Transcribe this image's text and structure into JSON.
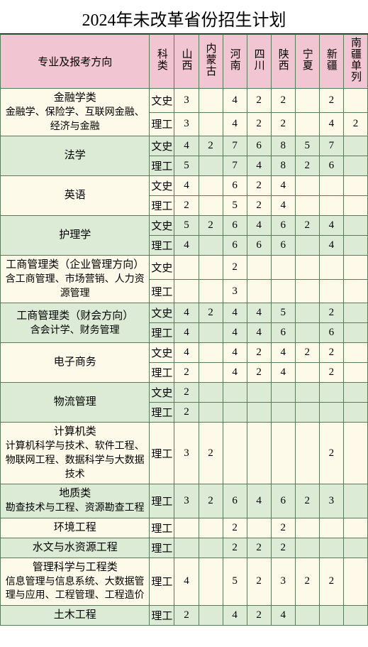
{
  "title": "2024年未改革省份招生计划",
  "colors": {
    "header_bg": "#f2c5d3",
    "row_warm": "#fdfae9",
    "row_green": "#dcebd6",
    "border": "#5a7a5a"
  },
  "headers": {
    "major": "专业及报考方向",
    "type": "科类",
    "provinces": [
      "山西",
      "内蒙古",
      "河南",
      "四川",
      "陕西",
      "宁夏",
      "新疆",
      "南疆单列"
    ]
  },
  "type_labels": {
    "ws": "文史",
    "lg": "理工"
  },
  "majors": [
    {
      "main": "金融学类",
      "sub": "金融学、保险学、互联网金融、经济与金融",
      "bg": "w",
      "rows": [
        {
          "t": "ws",
          "v": [
            "3",
            "",
            "4",
            "2",
            "2",
            "",
            "2",
            ""
          ]
        },
        {
          "t": "lg",
          "v": [
            "3",
            "",
            "4",
            "2",
            "2",
            "",
            "4",
            "2"
          ]
        }
      ]
    },
    {
      "main": "法学",
      "sub": "",
      "bg": "g",
      "rows": [
        {
          "t": "ws",
          "v": [
            "4",
            "2",
            "7",
            "6",
            "8",
            "5",
            "7",
            ""
          ]
        },
        {
          "t": "lg",
          "v": [
            "5",
            "",
            "7",
            "4",
            "8",
            "2",
            "6",
            ""
          ]
        }
      ]
    },
    {
      "main": "英语",
      "sub": "",
      "bg": "w",
      "rows": [
        {
          "t": "ws",
          "v": [
            "4",
            "",
            "6",
            "2",
            "4",
            "",
            "",
            ""
          ]
        },
        {
          "t": "lg",
          "v": [
            "2",
            "",
            "5",
            "2",
            "4",
            "",
            "",
            ""
          ]
        }
      ]
    },
    {
      "main": "护理学",
      "sub": "",
      "bg": "g",
      "rows": [
        {
          "t": "ws",
          "v": [
            "5",
            "2",
            "6",
            "4",
            "6",
            "2",
            "4",
            ""
          ]
        },
        {
          "t": "lg",
          "v": [
            "4",
            "",
            "6",
            "6",
            "6",
            "",
            "4",
            ""
          ]
        }
      ]
    },
    {
      "main": "工商管理类（企业管理方向）",
      "sub": "含工商管理、市场营销、人力资源管理",
      "bg": "w",
      "rows": [
        {
          "t": "ws",
          "v": [
            "",
            "",
            "2",
            "",
            "",
            "",
            "",
            ""
          ]
        },
        {
          "t": "lg",
          "v": [
            "",
            "",
            "3",
            "",
            "",
            "",
            "",
            ""
          ]
        }
      ]
    },
    {
      "main": "工商管理类（财会方向）",
      "sub": "含会计学、财务管理",
      "bg": "g",
      "rows": [
        {
          "t": "ws",
          "v": [
            "4",
            "2",
            "4",
            "4",
            "5",
            "",
            "2",
            ""
          ]
        },
        {
          "t": "lg",
          "v": [
            "4",
            "",
            "4",
            "4",
            "6",
            "",
            "6",
            ""
          ]
        }
      ]
    },
    {
      "main": "电子商务",
      "sub": "",
      "bg": "w",
      "rows": [
        {
          "t": "ws",
          "v": [
            "4",
            "",
            "4",
            "2",
            "4",
            "2",
            "2",
            ""
          ]
        },
        {
          "t": "lg",
          "v": [
            "2",
            "",
            "4",
            "2",
            "4",
            "",
            "2",
            ""
          ]
        }
      ]
    },
    {
      "main": "物流管理",
      "sub": "",
      "bg": "g",
      "rows": [
        {
          "t": "ws",
          "v": [
            "2",
            "",
            "",
            "",
            "",
            "",
            "",
            ""
          ]
        },
        {
          "t": "lg",
          "v": [
            "2",
            "",
            "",
            "",
            "",
            "",
            "",
            ""
          ]
        }
      ]
    },
    {
      "main": "计算机类",
      "sub": "计算机科学与技术、软件工程、物联网工程、数据科学与大数据技术",
      "bg": "w",
      "rows": [
        {
          "t": "lg",
          "v": [
            "3",
            "2",
            "",
            "",
            "",
            "",
            "2",
            ""
          ]
        }
      ]
    },
    {
      "main": "地质类",
      "sub": "勘查技术与工程、资源勘查工程",
      "bg": "g",
      "rows": [
        {
          "t": "lg",
          "v": [
            "3",
            "2",
            "6",
            "4",
            "6",
            "2",
            "3",
            ""
          ]
        }
      ]
    },
    {
      "main": "环境工程",
      "sub": "",
      "bg": "w",
      "rows": [
        {
          "t": "lg",
          "v": [
            "",
            "",
            "2",
            "",
            "2",
            "",
            "",
            ""
          ]
        }
      ]
    },
    {
      "main": "水文与水资源工程",
      "sub": "",
      "bg": "g",
      "rows": [
        {
          "t": "lg",
          "v": [
            "",
            "",
            "2",
            "2",
            "2",
            "",
            "",
            ""
          ]
        }
      ]
    },
    {
      "main": "管理科学与工程类",
      "sub": "信息管理与信息系统、大数据管理与应用、工程管理、工程造价",
      "bg": "w",
      "rows": [
        {
          "t": "lg",
          "v": [
            "4",
            "",
            "5",
            "2",
            "3",
            "2",
            "2",
            ""
          ]
        }
      ]
    },
    {
      "main": "土木工程",
      "sub": "",
      "bg": "g",
      "rows": [
        {
          "t": "lg",
          "v": [
            "2",
            "",
            "4",
            "2",
            "4",
            "",
            "",
            ""
          ]
        }
      ]
    }
  ]
}
